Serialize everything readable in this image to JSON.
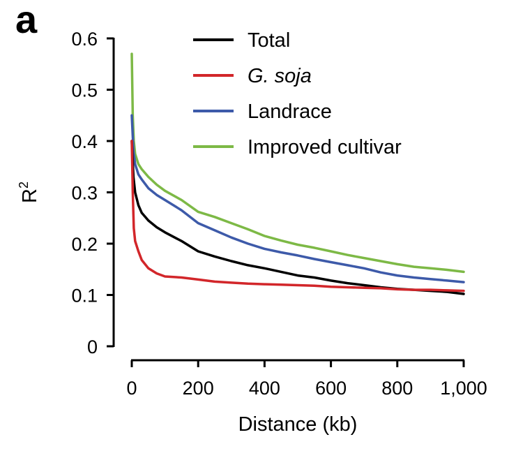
{
  "panel_label": "a",
  "chart_data": {
    "type": "line",
    "xlabel": "Distance (kb)",
    "ylabel": "R",
    "ylabel_superscript": "2",
    "xlim": [
      0,
      1000
    ],
    "ylim": [
      0,
      0.6
    ],
    "x_ticks": [
      0,
      200,
      400,
      600,
      800,
      1000
    ],
    "x_tick_labels": [
      "0",
      "200",
      "400",
      "600",
      "800",
      "1,000"
    ],
    "y_ticks": [
      0,
      0.1,
      0.2,
      0.3,
      0.4,
      0.5,
      0.6
    ],
    "y_tick_labels": [
      "0",
      "0.1",
      "0.2",
      "0.3",
      "0.4",
      "0.5",
      "0.6"
    ],
    "grid": false,
    "legend_position": "top-right",
    "series": [
      {
        "name": "Total",
        "italic": false,
        "color": "#000000",
        "points": [
          [
            0,
            0.4
          ],
          [
            5,
            0.33
          ],
          [
            10,
            0.3
          ],
          [
            20,
            0.275
          ],
          [
            30,
            0.26
          ],
          [
            50,
            0.245
          ],
          [
            75,
            0.232
          ],
          [
            100,
            0.222
          ],
          [
            150,
            0.205
          ],
          [
            200,
            0.185
          ],
          [
            250,
            0.175
          ],
          [
            300,
            0.166
          ],
          [
            350,
            0.158
          ],
          [
            400,
            0.152
          ],
          [
            450,
            0.145
          ],
          [
            500,
            0.138
          ],
          [
            550,
            0.134
          ],
          [
            600,
            0.128
          ],
          [
            650,
            0.123
          ],
          [
            700,
            0.119
          ],
          [
            750,
            0.115
          ],
          [
            800,
            0.112
          ],
          [
            850,
            0.11
          ],
          [
            900,
            0.108
          ],
          [
            950,
            0.106
          ],
          [
            1000,
            0.102
          ]
        ]
      },
      {
        "name": "G. soja",
        "italic": true,
        "color": "#d2262a",
        "points": [
          [
            0,
            0.4
          ],
          [
            3,
            0.3
          ],
          [
            6,
            0.23
          ],
          [
            10,
            0.205
          ],
          [
            20,
            0.185
          ],
          [
            30,
            0.168
          ],
          [
            50,
            0.152
          ],
          [
            75,
            0.142
          ],
          [
            100,
            0.136
          ],
          [
            150,
            0.134
          ],
          [
            200,
            0.13
          ],
          [
            250,
            0.126
          ],
          [
            300,
            0.124
          ],
          [
            350,
            0.122
          ],
          [
            400,
            0.121
          ],
          [
            450,
            0.12
          ],
          [
            500,
            0.119
          ],
          [
            550,
            0.118
          ],
          [
            600,
            0.116
          ],
          [
            650,
            0.115
          ],
          [
            700,
            0.114
          ],
          [
            750,
            0.113
          ],
          [
            800,
            0.111
          ],
          [
            850,
            0.11
          ],
          [
            900,
            0.11
          ],
          [
            950,
            0.109
          ],
          [
            1000,
            0.108
          ]
        ]
      },
      {
        "name": "Landrace",
        "italic": false,
        "color": "#3d5aa9",
        "points": [
          [
            0,
            0.45
          ],
          [
            5,
            0.38
          ],
          [
            10,
            0.355
          ],
          [
            20,
            0.335
          ],
          [
            30,
            0.325
          ],
          [
            50,
            0.308
          ],
          [
            75,
            0.295
          ],
          [
            100,
            0.285
          ],
          [
            150,
            0.265
          ],
          [
            200,
            0.24
          ],
          [
            250,
            0.226
          ],
          [
            300,
            0.212
          ],
          [
            350,
            0.2
          ],
          [
            400,
            0.19
          ],
          [
            450,
            0.183
          ],
          [
            500,
            0.177
          ],
          [
            550,
            0.17
          ],
          [
            600,
            0.164
          ],
          [
            650,
            0.158
          ],
          [
            700,
            0.152
          ],
          [
            750,
            0.144
          ],
          [
            800,
            0.138
          ],
          [
            850,
            0.134
          ],
          [
            900,
            0.131
          ],
          [
            950,
            0.128
          ],
          [
            1000,
            0.125
          ]
        ]
      },
      {
        "name": "Improved cultivar",
        "italic": false,
        "color": "#7db946",
        "points": [
          [
            0,
            0.57
          ],
          [
            3,
            0.45
          ],
          [
            6,
            0.4
          ],
          [
            10,
            0.375
          ],
          [
            20,
            0.355
          ],
          [
            30,
            0.345
          ],
          [
            50,
            0.33
          ],
          [
            75,
            0.315
          ],
          [
            100,
            0.303
          ],
          [
            150,
            0.285
          ],
          [
            200,
            0.262
          ],
          [
            250,
            0.252
          ],
          [
            300,
            0.24
          ],
          [
            350,
            0.228
          ],
          [
            400,
            0.215
          ],
          [
            450,
            0.206
          ],
          [
            500,
            0.198
          ],
          [
            550,
            0.192
          ],
          [
            600,
            0.185
          ],
          [
            650,
            0.178
          ],
          [
            700,
            0.172
          ],
          [
            750,
            0.166
          ],
          [
            800,
            0.16
          ],
          [
            850,
            0.155
          ],
          [
            900,
            0.152
          ],
          [
            950,
            0.149
          ],
          [
            1000,
            0.145
          ]
        ]
      }
    ]
  }
}
